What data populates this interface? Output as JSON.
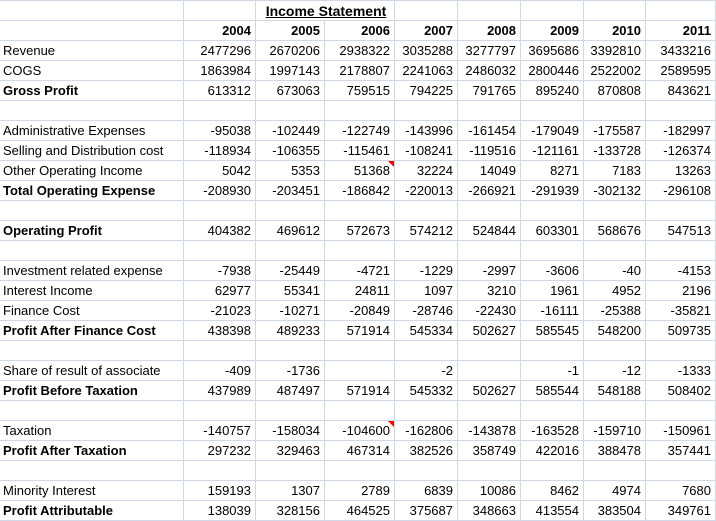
{
  "sheet": {
    "title": "Income Statement",
    "years": [
      "2004",
      "2005",
      "2006",
      "2007",
      "2008",
      "2009",
      "2010",
      "2011"
    ],
    "rows": [
      {
        "label": "Revenue",
        "bold": false,
        "values": [
          2477296,
          2670206,
          2938322,
          3035288,
          3277797,
          3695686,
          3392810,
          3433216
        ]
      },
      {
        "label": "COGS",
        "bold": false,
        "values": [
          1863984,
          1997143,
          2178807,
          2241063,
          2486032,
          2800446,
          2522002,
          2589595
        ]
      },
      {
        "label": "Gross Profit",
        "bold": true,
        "values": [
          613312,
          673063,
          759515,
          794225,
          791765,
          895240,
          870808,
          843621
        ]
      },
      {
        "label": "",
        "bold": false,
        "values": [
          null,
          null,
          null,
          null,
          null,
          null,
          null,
          null
        ]
      },
      {
        "label": "Administrative Expenses",
        "bold": false,
        "values": [
          -95038,
          -102449,
          -122749,
          -143996,
          -161454,
          -179049,
          -175587,
          -182997
        ]
      },
      {
        "label": "Selling and Distribution cost",
        "bold": false,
        "values": [
          -118934,
          -106355,
          -115461,
          -108241,
          -119516,
          -121161,
          -133728,
          -126374
        ]
      },
      {
        "label": "Other Operating Income",
        "bold": false,
        "values": [
          5042,
          5353,
          51368,
          32224,
          14049,
          8271,
          7183,
          13263
        ],
        "comment_cols": [
          2
        ]
      },
      {
        "label": "Total Operating Expense",
        "bold": true,
        "values": [
          -208930,
          -203451,
          -186842,
          -220013,
          -266921,
          -291939,
          -302132,
          -296108
        ]
      },
      {
        "label": "",
        "bold": false,
        "values": [
          null,
          null,
          null,
          null,
          null,
          null,
          null,
          null
        ]
      },
      {
        "label": "Operating Profit",
        "bold": true,
        "values": [
          404382,
          469612,
          572673,
          574212,
          524844,
          603301,
          568676,
          547513
        ]
      },
      {
        "label": "",
        "bold": false,
        "values": [
          null,
          null,
          null,
          null,
          null,
          null,
          null,
          null
        ]
      },
      {
        "label": "Investment related expense",
        "bold": false,
        "values": [
          -7938,
          -25449,
          -4721,
          -1229,
          -2997,
          -3606,
          -40,
          -4153
        ]
      },
      {
        "label": "Interest Income",
        "bold": false,
        "values": [
          62977,
          55341,
          24811,
          1097,
          3210,
          1961,
          4952,
          2196
        ]
      },
      {
        "label": "Finance Cost",
        "bold": false,
        "values": [
          -21023,
          -10271,
          -20849,
          -28746,
          -22430,
          -16111,
          -25388,
          -35821
        ]
      },
      {
        "label": "Profit After Finance Cost",
        "bold": true,
        "values": [
          438398,
          489233,
          571914,
          545334,
          502627,
          585545,
          548200,
          509735
        ]
      },
      {
        "label": "",
        "bold": false,
        "values": [
          null,
          null,
          null,
          null,
          null,
          null,
          null,
          null
        ]
      },
      {
        "label": "Share of result of associate",
        "bold": false,
        "values": [
          -409,
          -1736,
          null,
          -2,
          null,
          -1,
          -12,
          -1333
        ]
      },
      {
        "label": "Profit Before Taxation",
        "bold": true,
        "values": [
          437989,
          487497,
          571914,
          545332,
          502627,
          585544,
          548188,
          508402
        ]
      },
      {
        "label": "",
        "bold": false,
        "values": [
          null,
          null,
          null,
          null,
          null,
          null,
          null,
          null
        ]
      },
      {
        "label": "Taxation",
        "bold": false,
        "values": [
          -140757,
          -158034,
          -104600,
          -162806,
          -143878,
          -163528,
          -159710,
          -150961
        ],
        "comment_cols": [
          2
        ]
      },
      {
        "label": "Profit After Taxation",
        "bold": true,
        "values": [
          297232,
          329463,
          467314,
          382526,
          358749,
          422016,
          388478,
          357441
        ]
      },
      {
        "label": "",
        "bold": false,
        "values": [
          null,
          null,
          null,
          null,
          null,
          null,
          null,
          null
        ]
      },
      {
        "label": "Minority Interest",
        "bold": false,
        "values": [
          159193,
          1307,
          2789,
          6839,
          10086,
          8462,
          4974,
          7680
        ]
      },
      {
        "label": "Profit Attributable",
        "bold": true,
        "values": [
          138039,
          328156,
          464525,
          375687,
          348663,
          413554,
          383504,
          349761
        ]
      }
    ],
    "colors": {
      "gridline": "#d0d7e5",
      "comment_indicator": "#ff0000",
      "text": "#000000",
      "background": "#ffffff"
    }
  }
}
